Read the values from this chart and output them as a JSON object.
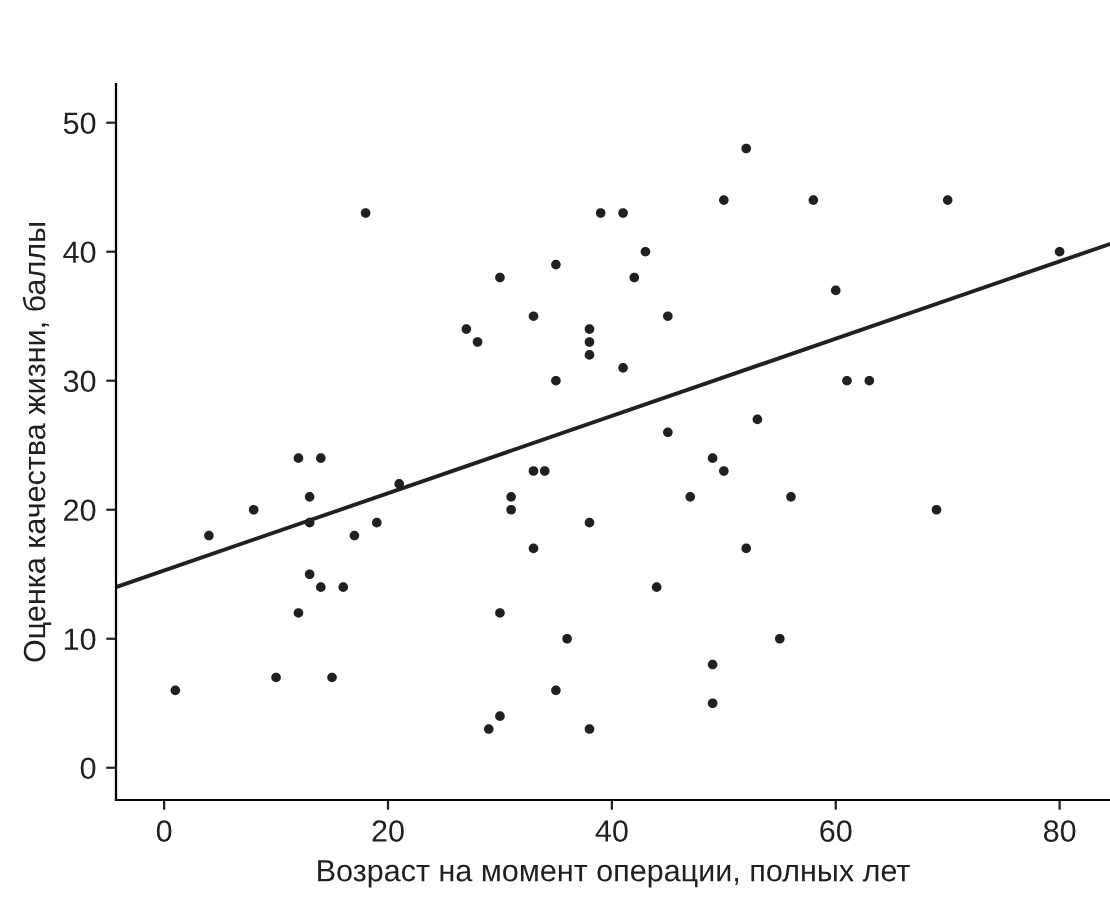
{
  "chart_data": {
    "type": "scatter",
    "xlabel": "Возраст на момент операции, полных лет",
    "ylabel": "Оценка качества жизни, баллы",
    "xlim": [
      -4.3,
      84.5
    ],
    "ylim": [
      -2.5,
      53
    ],
    "xticks": [
      0,
      20,
      40,
      60,
      80
    ],
    "yticks": [
      0,
      10,
      20,
      30,
      40,
      50
    ],
    "grid": false,
    "series": [
      {
        "marker": "circle",
        "color": "#231f20",
        "x": [
          1,
          4,
          8,
          10,
          12,
          12,
          13,
          13,
          13,
          14,
          14,
          15,
          16,
          17,
          18,
          19,
          21,
          27,
          28,
          29,
          30,
          30,
          30,
          31,
          31,
          33,
          33,
          33,
          34,
          35,
          35,
          35,
          36,
          38,
          38,
          38,
          38,
          38,
          39,
          41,
          41,
          42,
          43,
          44,
          45,
          45,
          47,
          49,
          49,
          49,
          50,
          50,
          52,
          52,
          53,
          55,
          56,
          58,
          60,
          61,
          63,
          69,
          70,
          80
        ],
        "values": [
          6,
          18,
          20,
          7,
          24,
          12,
          21,
          19,
          15,
          24,
          14,
          7,
          14,
          18,
          43,
          19,
          22,
          34,
          33,
          3,
          38,
          12,
          4,
          21,
          20,
          35,
          23,
          17,
          23,
          39,
          30,
          6,
          10,
          34,
          33,
          32,
          19,
          3,
          43,
          43,
          31,
          38,
          40,
          14,
          35,
          26,
          21,
          24,
          8,
          5,
          44,
          23,
          48,
          17,
          27,
          10,
          21,
          44,
          37,
          30,
          30,
          20,
          44,
          40
        ]
      },
      {
        "type": "line",
        "marker": "none",
        "color": "#231f20",
        "x": [
          -4.3,
          84.5
        ],
        "values": [
          14.0,
          40.6
        ]
      }
    ]
  }
}
